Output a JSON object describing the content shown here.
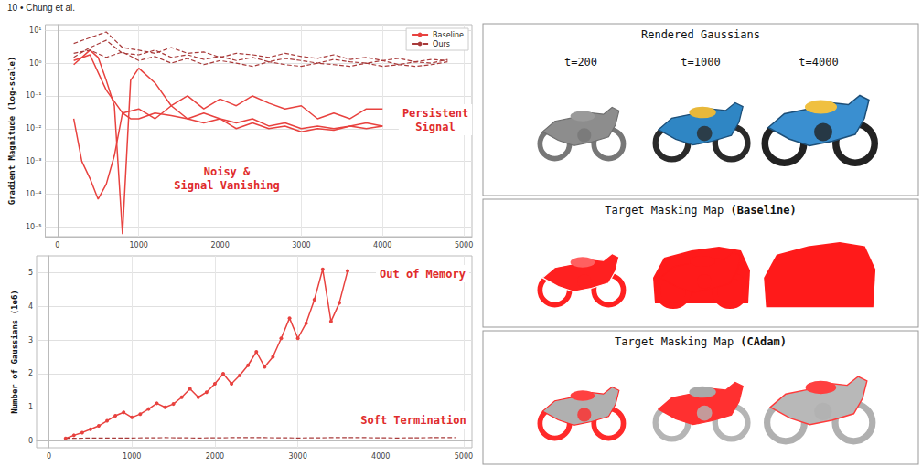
{
  "header": {
    "text": "10 • Chung et al."
  },
  "chart_data": [
    {
      "type": "line",
      "ylabel": "Gradient Magnitude (log-scale)",
      "log": "y",
      "grid": true,
      "legend": "upper right",
      "xlim": [
        -150,
        5100
      ],
      "xticks": [
        0,
        1000,
        2000,
        3000,
        4000,
        5000
      ],
      "ylim": [
        5e-06,
        15
      ],
      "yticks": [
        {
          "value": 10,
          "label": "10¹"
        },
        {
          "value": 1,
          "label": "10⁰"
        },
        {
          "value": 0.1,
          "label": "10⁻¹"
        },
        {
          "value": 0.01,
          "label": "10⁻²"
        },
        {
          "value": 0.001,
          "label": "10⁻³"
        },
        {
          "value": 0.0001,
          "label": "10⁻⁴"
        },
        {
          "value": 1e-05,
          "label": "10⁻⁵"
        }
      ],
      "annotations": [
        {
          "lines": [
            "Persistent",
            "Signal"
          ]
        },
        {
          "lines": [
            "Noisy &",
            "Signal Vanishing"
          ]
        }
      ],
      "series": [
        {
          "name": "Baseline",
          "color": "#e8423f",
          "line_style": "solid",
          "x": [
            200,
            400,
            500,
            600,
            700,
            800,
            900,
            1000,
            1200,
            1400,
            1600,
            1800,
            2000,
            2200,
            2400,
            2600,
            2800,
            3000,
            3200,
            3400,
            3600,
            3800,
            4000
          ],
          "values": [
            0.9,
            2.5,
            1.5,
            0.3,
            0.05,
            6e-06,
            0.3,
            0.7,
            0.25,
            0.05,
            0.1,
            0.04,
            0.08,
            0.05,
            0.1,
            0.06,
            0.04,
            0.05,
            0.02,
            0.03,
            0.02,
            0.04,
            0.04
          ]
        },
        {
          "name": "Baseline",
          "color": "#e8423f",
          "line_style": "solid",
          "x": [
            200,
            300,
            400,
            500,
            600,
            700,
            800,
            900,
            1000,
            1200,
            1400,
            1600,
            1800,
            2000,
            2200,
            2400,
            2600,
            2800,
            3000,
            3200,
            3400,
            3600,
            3800,
            4000
          ],
          "values": [
            0.02,
            0.001,
            0.0003,
            7e-05,
            0.0002,
            0.0015,
            0.03,
            0.02,
            0.02,
            0.03,
            0.025,
            0.02,
            0.03,
            0.02,
            0.015,
            0.02,
            0.012,
            0.015,
            0.01,
            0.012,
            0.01,
            0.012,
            0.01,
            0.012
          ]
        },
        {
          "name": "Baseline",
          "color": "#e8423f",
          "line_style": "solid",
          "x": [
            200,
            400,
            600,
            800,
            1000,
            1200,
            1400,
            1600,
            1800,
            2000,
            2200,
            2400,
            2600,
            2800,
            3000,
            3200,
            3400,
            3600,
            3800,
            4000
          ],
          "values": [
            1.2,
            1.8,
            0.15,
            0.03,
            0.04,
            0.02,
            0.05,
            0.02,
            0.015,
            0.02,
            0.01,
            0.015,
            0.01,
            0.012,
            0.008,
            0.01,
            0.009,
            0.012,
            0.015,
            0.012
          ]
        },
        {
          "name": "Ours",
          "color": "#a83a3a",
          "line_style": "dashed",
          "x": [
            200,
            400,
            600,
            800,
            1000,
            1200,
            1400,
            1600,
            1800,
            2000,
            2200,
            2400,
            2600,
            2800,
            3000,
            3200,
            3400,
            3600,
            3800,
            4000,
            4200,
            4400,
            4600,
            4800
          ],
          "values": [
            4,
            6,
            9,
            3,
            2.5,
            2,
            3,
            2,
            2.2,
            1.5,
            2,
            1.8,
            1.5,
            2,
            1.6,
            1.4,
            1.8,
            1.3,
            1.5,
            1.2,
            1.4,
            1.1,
            1.3,
            1.2
          ]
        },
        {
          "name": "Ours",
          "color": "#a83a3a",
          "line_style": "dashed",
          "x": [
            200,
            400,
            600,
            800,
            1000,
            1200,
            1400,
            1600,
            1800,
            2000,
            2200,
            2400,
            2600,
            2800,
            3000,
            3200,
            3400,
            3600,
            3800,
            4000,
            4200,
            4400,
            4600,
            4800
          ],
          "values": [
            1.5,
            3,
            5,
            2,
            1.8,
            2.5,
            1.5,
            1.8,
            1.3,
            1.6,
            1.2,
            1.5,
            1.1,
            1.4,
            1.2,
            1.0,
            1.3,
            1.1,
            1.0,
            1.2,
            0.9,
            1.1,
            1.0,
            1.3
          ]
        },
        {
          "name": "Ours",
          "color": "#a83a3a",
          "line_style": "dashed",
          "x": [
            200,
            400,
            600,
            800,
            1000,
            1200,
            1400,
            1600,
            1800,
            2000,
            2200,
            2400,
            2600,
            2800,
            3000,
            3200,
            3400,
            3600,
            3800,
            4000,
            4200,
            4400,
            4600,
            4800
          ],
          "values": [
            2,
            2.5,
            1.5,
            2.2,
            1.2,
            1.6,
            1.0,
            1.4,
            0.9,
            1.2,
            1.0,
            0.8,
            1.1,
            0.9,
            0.8,
            1.0,
            0.9,
            0.8,
            1.0,
            0.8,
            0.9,
            0.8,
            0.9,
            1.1
          ]
        }
      ]
    },
    {
      "type": "line",
      "ylabel": "Number of Gaussians (1e6)",
      "grid": true,
      "xlim": [
        -150,
        5100
      ],
      "xticks": [
        0,
        1000,
        2000,
        3000,
        4000,
        5000
      ],
      "ylim": [
        -0.2,
        5.5
      ],
      "yticks": [
        0,
        1,
        2,
        3,
        4,
        5
      ],
      "annotations": [
        {
          "lines": [
            "Out of Memory"
          ]
        },
        {
          "lines": [
            "Soft Termination"
          ]
        }
      ],
      "series": [
        {
          "name": "Baseline",
          "color": "#e8423f",
          "line_style": "solid",
          "marker": "o",
          "x": [
            200,
            300,
            400,
            500,
            600,
            700,
            800,
            900,
            1000,
            1100,
            1200,
            1300,
            1400,
            1500,
            1600,
            1700,
            1800,
            1900,
            2000,
            2100,
            2200,
            2300,
            2400,
            2500,
            2600,
            2700,
            2800,
            2900,
            3000,
            3100,
            3200,
            3300,
            3400,
            3500,
            3600
          ],
          "values": [
            0.08,
            0.17,
            0.25,
            0.35,
            0.45,
            0.6,
            0.75,
            0.85,
            0.7,
            0.8,
            0.95,
            1.12,
            1.0,
            1.1,
            1.3,
            1.55,
            1.3,
            1.45,
            1.7,
            2.0,
            1.7,
            1.95,
            2.25,
            2.65,
            2.2,
            2.5,
            3.05,
            3.65,
            3.05,
            3.5,
            4.2,
            5.1,
            3.55,
            4.1,
            5.05
          ]
        },
        {
          "name": "Ours",
          "color": "#a83a3a",
          "line_style": "dashed",
          "x": [
            200,
            600,
            1000,
            1400,
            1800,
            2200,
            2600,
            3000,
            3400,
            3800,
            4200,
            4600,
            4900
          ],
          "values": [
            0.08,
            0.09,
            0.09,
            0.1,
            0.09,
            0.1,
            0.1,
            0.09,
            0.1,
            0.1,
            0.09,
            0.1,
            0.1
          ]
        }
      ]
    }
  ],
  "panels": [
    {
      "title": "Rendered Gaussians",
      "labels": [
        "t=200",
        "t=1000",
        "t=4000"
      ]
    },
    {
      "title": "Target Masking Map",
      "title_bold": "(Baseline)"
    },
    {
      "title": "Target Masking Map",
      "title_bold": "(CAdam)"
    }
  ]
}
